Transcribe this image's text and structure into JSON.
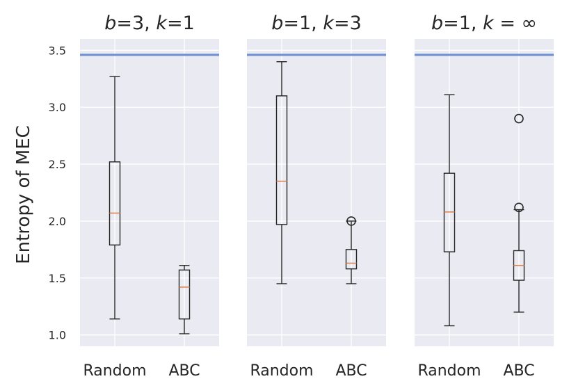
{
  "chart_data": {
    "type": "boxplot",
    "ylabel": "Entropy of MEC",
    "ylim": [
      0.9,
      3.6
    ],
    "yticks": [
      1.0,
      1.5,
      2.0,
      2.5,
      3.0,
      3.5
    ],
    "categories": [
      "Random",
      "ABC"
    ],
    "reference_line": {
      "y": 3.46,
      "color": "#6b8fd0"
    },
    "median_color": "#dd8452",
    "panels": [
      {
        "title": {
          "var1": "b",
          "val1": "=3, ",
          "var2": "k",
          "val2": "=1"
        },
        "boxes": [
          {
            "category": "Random",
            "whisker_low": 1.14,
            "q1": 1.79,
            "median": 2.07,
            "q3": 2.52,
            "whisker_high": 3.27,
            "outliers": []
          },
          {
            "category": "ABC",
            "whisker_low": 1.01,
            "q1": 1.14,
            "median": 1.42,
            "q3": 1.57,
            "whisker_high": 1.61,
            "outliers": []
          }
        ]
      },
      {
        "title": {
          "var1": "b",
          "val1": "=1, ",
          "var2": "k",
          "val2": "=3"
        },
        "boxes": [
          {
            "category": "Random",
            "whisker_low": 1.45,
            "q1": 1.97,
            "median": 2.35,
            "q3": 3.1,
            "whisker_high": 3.4,
            "outliers": []
          },
          {
            "category": "ABC",
            "whisker_low": 1.45,
            "q1": 1.58,
            "median": 1.63,
            "q3": 1.75,
            "whisker_high": 2.0,
            "outliers": [
              2.0
            ]
          }
        ]
      },
      {
        "title": {
          "var1": "b",
          "val1": "=1, ",
          "var2": "k",
          "val2": " = ∞"
        },
        "boxes": [
          {
            "category": "Random",
            "whisker_low": 1.08,
            "q1": 1.73,
            "median": 2.08,
            "q3": 2.42,
            "whisker_high": 3.11,
            "outliers": []
          },
          {
            "category": "ABC",
            "whisker_low": 1.2,
            "q1": 1.48,
            "median": 1.61,
            "q3": 1.74,
            "whisker_high": 2.1,
            "outliers": [
              2.12,
              2.9
            ]
          }
        ]
      }
    ]
  }
}
